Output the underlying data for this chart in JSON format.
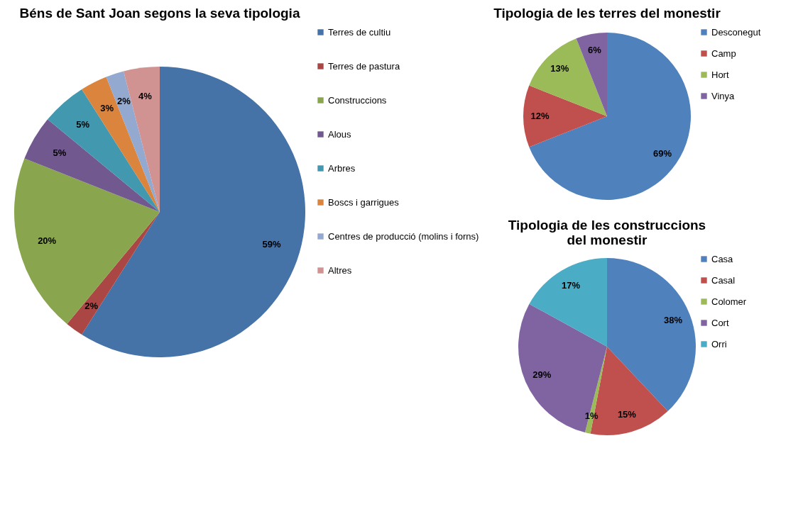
{
  "chart_data": [
    {
      "type": "pie",
      "title": "Béns de Sant Joan segons la seva tipologia",
      "legend": "right",
      "categories": [
        "Terres de cultiu",
        "Terres de pastura",
        "Construccions",
        "Alous",
        "Arbres",
        "Boscs i garrigues",
        "Centres de producció (molins i forns)",
        "Altres"
      ],
      "values": [
        59,
        2,
        20,
        5,
        5,
        3,
        2,
        4
      ],
      "value_labels": [
        "59%",
        "2%",
        "20%",
        "5%",
        "5%",
        "3%",
        "2%",
        "4%"
      ],
      "colors": [
        "#4572a7",
        "#aa4643",
        "#89a54e",
        "#71588f",
        "#4198af",
        "#db843d",
        "#93a9cf",
        "#d19392"
      ]
    },
    {
      "type": "pie",
      "title": "Tipologia de les terres del monestir",
      "legend": "right",
      "categories": [
        "Desconegut",
        "Camp",
        "Hort",
        "Vinya"
      ],
      "values": [
        69,
        12,
        13,
        6
      ],
      "value_labels": [
        "69%",
        "12%",
        "13%",
        "6%"
      ],
      "colors": [
        "#4f81bd",
        "#c0504d",
        "#9bbb59",
        "#8064a2"
      ]
    },
    {
      "type": "pie",
      "title": "Tipologia de les construccions del monestir",
      "legend": "right",
      "categories": [
        "Casa",
        "Casal",
        "Colomer",
        "Cort",
        "Orri"
      ],
      "values": [
        38,
        15,
        1,
        29,
        17
      ],
      "value_labels": [
        "38%",
        "15%",
        "1%",
        "29%",
        "17%"
      ],
      "colors": [
        "#4f81bd",
        "#c0504d",
        "#9bbb59",
        "#8064a2",
        "#4bacc6"
      ]
    }
  ]
}
